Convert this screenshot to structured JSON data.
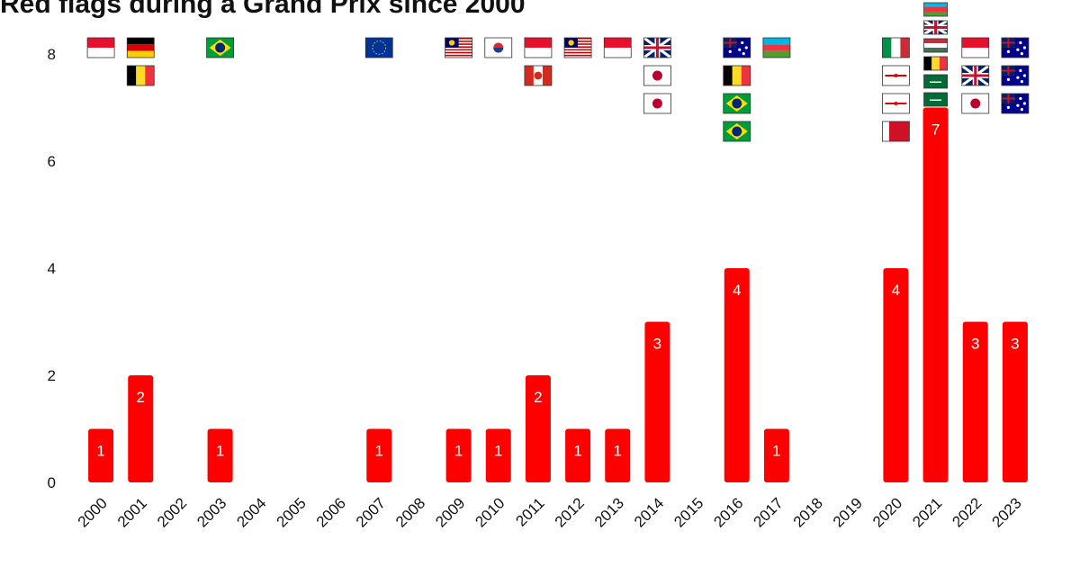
{
  "chart_data": {
    "type": "bar",
    "title": "Red flags during a Grand Prix since 2000",
    "categories": [
      "2000",
      "2001",
      "2002",
      "2003",
      "2004",
      "2005",
      "2006",
      "2007",
      "2008",
      "2009",
      "2010",
      "2011",
      "2012",
      "2013",
      "2014",
      "2015",
      "2016",
      "2017",
      "2018",
      "2019",
      "2020",
      "2021",
      "2022",
      "2023"
    ],
    "values": [
      1,
      2,
      0,
      1,
      0,
      0,
      0,
      1,
      0,
      1,
      1,
      2,
      1,
      1,
      3,
      0,
      4,
      1,
      0,
      0,
      4,
      7,
      3,
      3
    ],
    "color": "#ff0000",
    "ylim": [
      0,
      8
    ],
    "yticks": [
      0,
      2,
      4,
      6,
      8
    ],
    "grid": false
  }
}
